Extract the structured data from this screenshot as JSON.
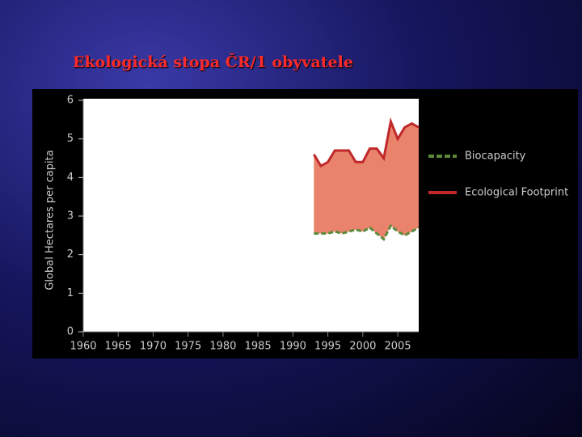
{
  "slide_title": "Ekologická stopa ČR/1 obyvatele",
  "chart_data": {
    "type": "area",
    "ylabel": "Global Hectares per capita",
    "x": [
      1993,
      1994,
      1995,
      1996,
      1997,
      1998,
      1999,
      2000,
      2001,
      2002,
      2003,
      2004,
      2005,
      2006,
      2007,
      2008
    ],
    "series": [
      {
        "name": "Biocapacity",
        "color": "#5a8a3a",
        "values": [
          2.55,
          2.55,
          2.55,
          2.6,
          2.55,
          2.6,
          2.65,
          2.6,
          2.7,
          2.55,
          2.4,
          2.75,
          2.6,
          2.5,
          2.6,
          2.7
        ]
      },
      {
        "name": "Ecological Footprint",
        "color": "#c0282a",
        "values": [
          4.6,
          4.3,
          4.4,
          4.7,
          4.7,
          4.7,
          4.4,
          4.4,
          4.75,
          4.75,
          4.5,
          5.45,
          5.0,
          5.3,
          5.4,
          5.3
        ]
      }
    ],
    "fill_color": "#e9836c",
    "xlim": [
      1960,
      2008
    ],
    "xticks": [
      1960,
      1965,
      1970,
      1975,
      1980,
      1985,
      1990,
      1995,
      2000,
      2005
    ],
    "ylim": [
      0,
      6
    ],
    "yticks": [
      0,
      1,
      2,
      3,
      4,
      5,
      6
    ]
  }
}
